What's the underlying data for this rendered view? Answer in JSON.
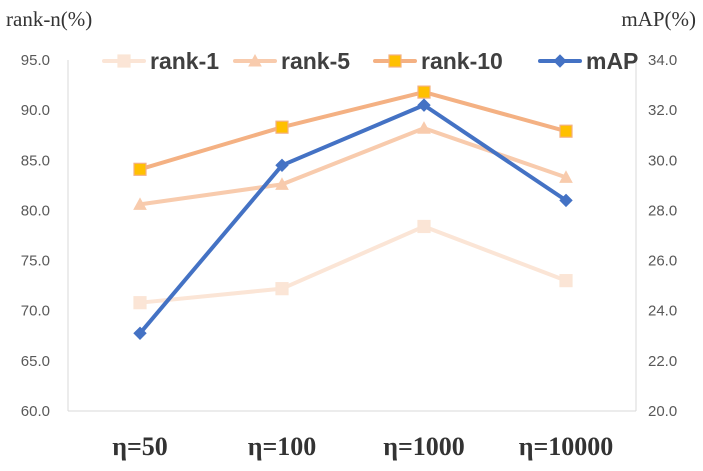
{
  "chart_data": {
    "type": "line",
    "categories": [
      "η=50",
      "η=100",
      "η=1000",
      "η=10000"
    ],
    "y_left": {
      "label": "rank-n(%)",
      "range": [
        60,
        95
      ],
      "ticks": [
        "60.0",
        "65.0",
        "70.0",
        "75.0",
        "80.0",
        "85.0",
        "90.0",
        "95.0"
      ]
    },
    "y_right": {
      "label": "mAP(%)",
      "range": [
        20,
        34
      ],
      "ticks": [
        "20.0",
        "22.0",
        "24.0",
        "26.0",
        "28.0",
        "30.0",
        "32.0",
        "34.0"
      ]
    },
    "series": [
      {
        "name": "rank-1",
        "axis": "left",
        "marker": "square",
        "color": "#FBE5D6",
        "values": [
          70.8,
          72.2,
          78.4,
          73.0
        ]
      },
      {
        "name": "rank-5",
        "axis": "left",
        "marker": "triangle",
        "color": "#F8CBAD",
        "values": [
          80.6,
          82.6,
          88.2,
          83.3
        ]
      },
      {
        "name": "rank-10",
        "axis": "left",
        "marker": "square",
        "color": "#F4B183",
        "marker_color": "#FFC000",
        "values": [
          84.1,
          88.3,
          91.8,
          87.9
        ]
      },
      {
        "name": "mAP",
        "axis": "right",
        "marker": "diamond",
        "color": "#4472C4",
        "values": [
          23.1,
          29.8,
          32.2,
          28.4
        ]
      }
    ],
    "legend_position": "top",
    "grid": false
  }
}
